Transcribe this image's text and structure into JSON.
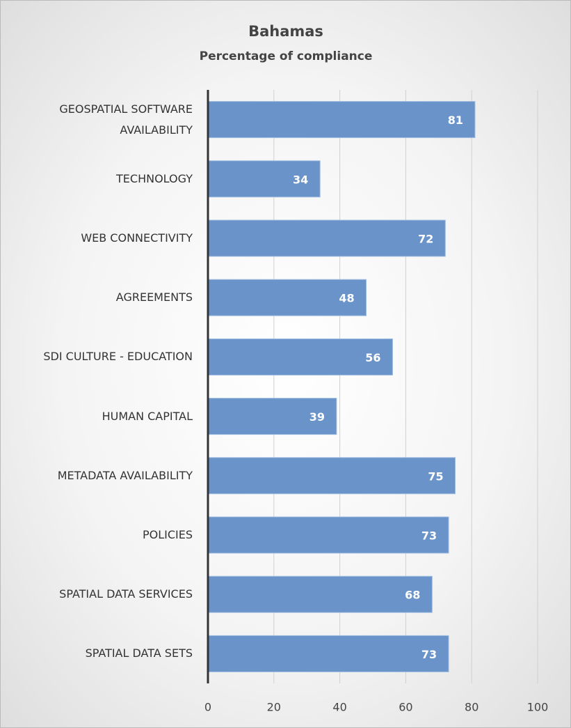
{
  "chart_data": {
    "type": "hbar",
    "title": "Bahamas",
    "subtitle": "Percentage of compliance",
    "categories": [
      "GEOSPATIAL SOFTWARE AVAILABILITY",
      "TECHNOLOGY",
      "WEB CONNECTIVITY",
      "AGREEMENTS",
      "SDI CULTURE - EDUCATION",
      "HUMAN CAPITAL",
      "METADATA AVAILABILITY",
      "POLICIES",
      "SPATIAL DATA SERVICES",
      "SPATIAL DATA SETS"
    ],
    "values": [
      81,
      34,
      72,
      48,
      56,
      39,
      75,
      73,
      68,
      73
    ],
    "color": "#6a94c9",
    "xlim": [
      0,
      100
    ],
    "xticks": [
      0,
      20,
      40,
      60,
      80,
      100
    ],
    "grid": true
  }
}
